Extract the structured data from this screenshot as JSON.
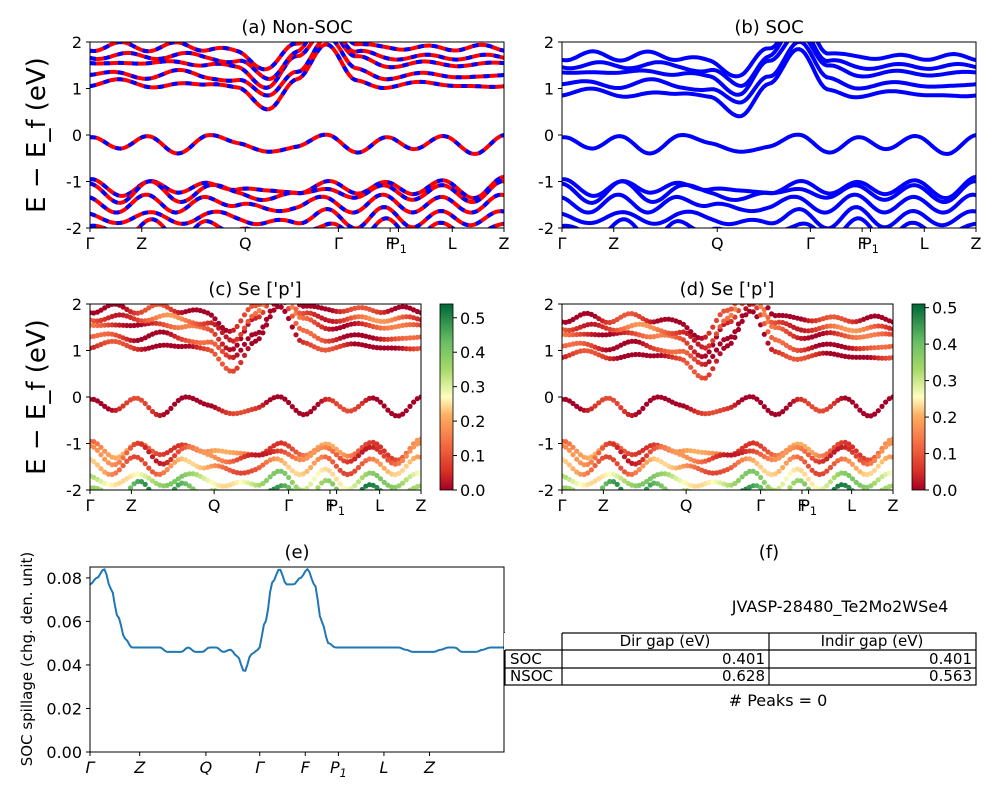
{
  "panels": {
    "a": {
      "title": "(a) Non-SOC",
      "ylabel": "E − E_f (eV)"
    },
    "b": {
      "title": "(b) SOC"
    },
    "c": {
      "title": "(c)  Se ['p']",
      "ylabel": "E − E_f (eV)"
    },
    "d": {
      "title": "(d) Se ['p']"
    },
    "e": {
      "title": "(e)",
      "ylabel": "SOC spillage (chg. den. unit)"
    },
    "f": {
      "title": "(f)",
      "material": "JVASP-28480_Te2Mo2WSe4",
      "table": {
        "headers": [
          "Dir gap (eV)",
          "Indir gap (eV)"
        ],
        "rows": [
          {
            "label": "SOC",
            "dir": "0.401",
            "indir": "0.401"
          },
          {
            "label": "NSOC",
            "dir": "0.628",
            "indir": "0.563"
          }
        ]
      },
      "peaks": "# Peaks = 0"
    }
  },
  "band_ticks": [
    "Γ",
    "Z",
    "Q",
    "Γ",
    "F",
    "P1",
    "L",
    "Z"
  ],
  "colors": {
    "nonsoc_a": "#ff0000",
    "nonsoc_b": "#0000ff",
    "soc": "#0000ff",
    "spillage": "#1f77b4"
  },
  "chart_data": [
    {
      "type": "line",
      "title": "(a) Non-SOC",
      "ylabel": "E − E_f (eV)",
      "ylim": [
        -2,
        2
      ],
      "yticks": [
        -2,
        -1,
        0,
        1,
        2
      ],
      "xticks": [
        "Γ",
        "Z",
        "Q",
        "Γ",
        "F",
        "P1",
        "L",
        "Z"
      ],
      "series": [
        {
          "values": [
            1.05,
            1.15,
            1.05,
            1.15,
            1.05,
            1.0,
            0.6,
            1.2,
            1.9,
            1.2,
            1.05,
            1.1,
            1.05,
            1.1,
            1.05
          ]
        },
        {
          "values": [
            -0.05,
            -0.35,
            0.0,
            -0.35,
            -0.05,
            -0.2,
            -0.3,
            -0.25,
            -0.05,
            -0.35,
            0.0,
            -0.35,
            -0.05,
            -0.35,
            0.0
          ]
        }
      ]
    },
    {
      "type": "line",
      "title": "(b) SOC",
      "ylim": [
        -2,
        2
      ],
      "yticks": [
        -2,
        -1,
        0,
        1,
        2
      ],
      "xticks": [
        "Γ",
        "Z",
        "Q",
        "Γ",
        "F",
        "P1",
        "L",
        "Z"
      ],
      "series": [
        {
          "values": [
            0.85,
            0.95,
            0.85,
            0.95,
            0.85,
            0.8,
            0.45,
            1.1,
            1.8,
            1.0,
            0.85,
            0.9,
            0.85,
            0.9,
            0.85
          ]
        },
        {
          "values": [
            -0.05,
            -0.35,
            0.0,
            -0.35,
            -0.05,
            -0.2,
            -0.3,
            -0.25,
            -0.05,
            -0.35,
            0.0,
            -0.35,
            -0.05,
            -0.35,
            0.0
          ]
        }
      ]
    },
    {
      "type": "scatter",
      "title": "(c)  Se ['p']",
      "ylabel": "E − E_f (eV)",
      "ylim": [
        -2,
        2
      ],
      "yticks": [
        -2,
        -1,
        0,
        1,
        2
      ],
      "xticks": [
        "Γ",
        "Z",
        "Q",
        "Γ",
        "F",
        "P1",
        "L",
        "Z"
      ],
      "colorbar": {
        "ticks": [
          "0.0",
          "0.1",
          "0.2",
          "0.3",
          "0.4",
          "0.5"
        ],
        "max": 0.54
      }
    },
    {
      "type": "scatter",
      "title": "(d) Se ['p']",
      "ylim": [
        -2,
        2
      ],
      "yticks": [
        -2,
        -1,
        0,
        1,
        2
      ],
      "xticks": [
        "Γ",
        "Z",
        "Q",
        "Γ",
        "F",
        "P1",
        "L",
        "Z"
      ],
      "colorbar": {
        "ticks": [
          "0.0",
          "0.1",
          "0.2",
          "0.3",
          "0.4",
          "0.5"
        ],
        "max": 0.51
      }
    },
    {
      "type": "line",
      "title": "(e)",
      "ylabel": "SOC spillage (chg. den. unit)",
      "ylim": [
        0,
        0.085
      ],
      "yticks": [
        "0.00",
        "0.02",
        "0.04",
        "0.06",
        "0.08"
      ],
      "xticks": [
        "Γ",
        "Z",
        "Q",
        "Γ",
        "F",
        "P1",
        "L",
        "Z"
      ],
      "series": [
        {
          "values": [
            0.077,
            0.08,
            0.084,
            0.075,
            0.062,
            0.052,
            0.048,
            0.048,
            0.048,
            0.048,
            0.048,
            0.046,
            0.046,
            0.046,
            0.048,
            0.046,
            0.046,
            0.048,
            0.048,
            0.046,
            0.047,
            0.044,
            0.037,
            0.045,
            0.047,
            0.06,
            0.078,
            0.084,
            0.077,
            0.077,
            0.08,
            0.084,
            0.077,
            0.06,
            0.05,
            0.048,
            0.048,
            0.048,
            0.048,
            0.048,
            0.048,
            0.048,
            0.048,
            0.048,
            0.048,
            0.047,
            0.046,
            0.046,
            0.046,
            0.046,
            0.047,
            0.048,
            0.048,
            0.046,
            0.046,
            0.046,
            0.047,
            0.048,
            0.048,
            0.048
          ]
        }
      ]
    }
  ]
}
